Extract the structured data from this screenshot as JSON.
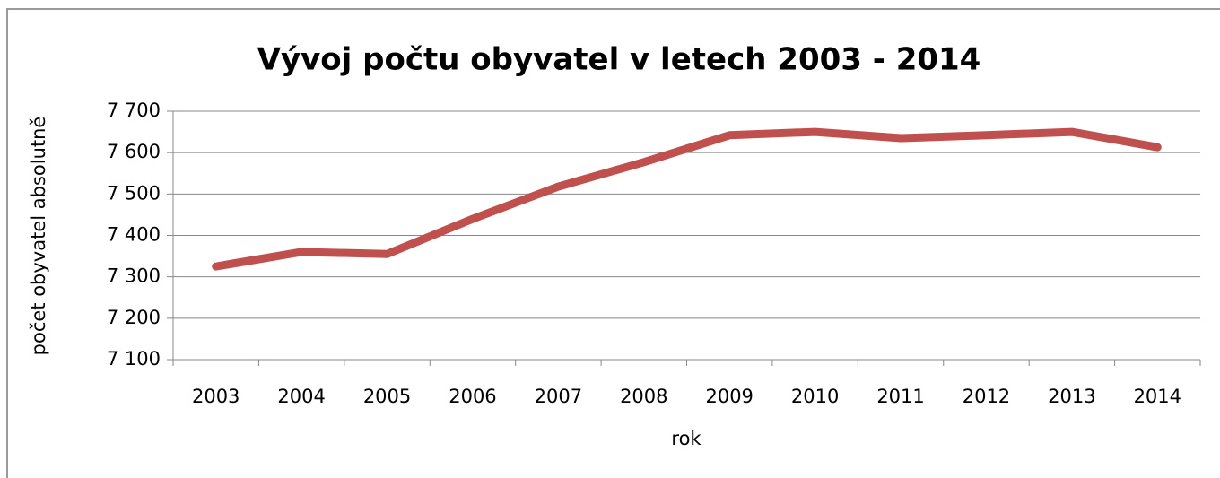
{
  "chart_data": {
    "type": "line",
    "title": "Vývoj počtu obyvatel v letech 2003 - 2014",
    "x_label": "rok",
    "y_label": "počet obyvatel absolutně",
    "categories": [
      "2003",
      "2004",
      "2005",
      "2006",
      "2007",
      "2008",
      "2009",
      "2010",
      "2011",
      "2012",
      "2013",
      "2014"
    ],
    "series": [
      {
        "name": "počet obyvatel",
        "color": "#c0504d",
        "values": [
          7325,
          7360,
          7355,
          7440,
          7518,
          7577,
          7642,
          7650,
          7635,
          7642,
          7650,
          7613
        ]
      }
    ],
    "ylim": [
      7100,
      7700
    ],
    "yticks": [
      {
        "value": 7100,
        "label": "7 100"
      },
      {
        "value": 7200,
        "label": "7 200"
      },
      {
        "value": 7300,
        "label": "7 300"
      },
      {
        "value": 7400,
        "label": "7 400"
      },
      {
        "value": 7500,
        "label": "7 500"
      },
      {
        "value": 7600,
        "label": "7 600"
      },
      {
        "value": 7700,
        "label": "7 700"
      }
    ],
    "grid": true
  }
}
